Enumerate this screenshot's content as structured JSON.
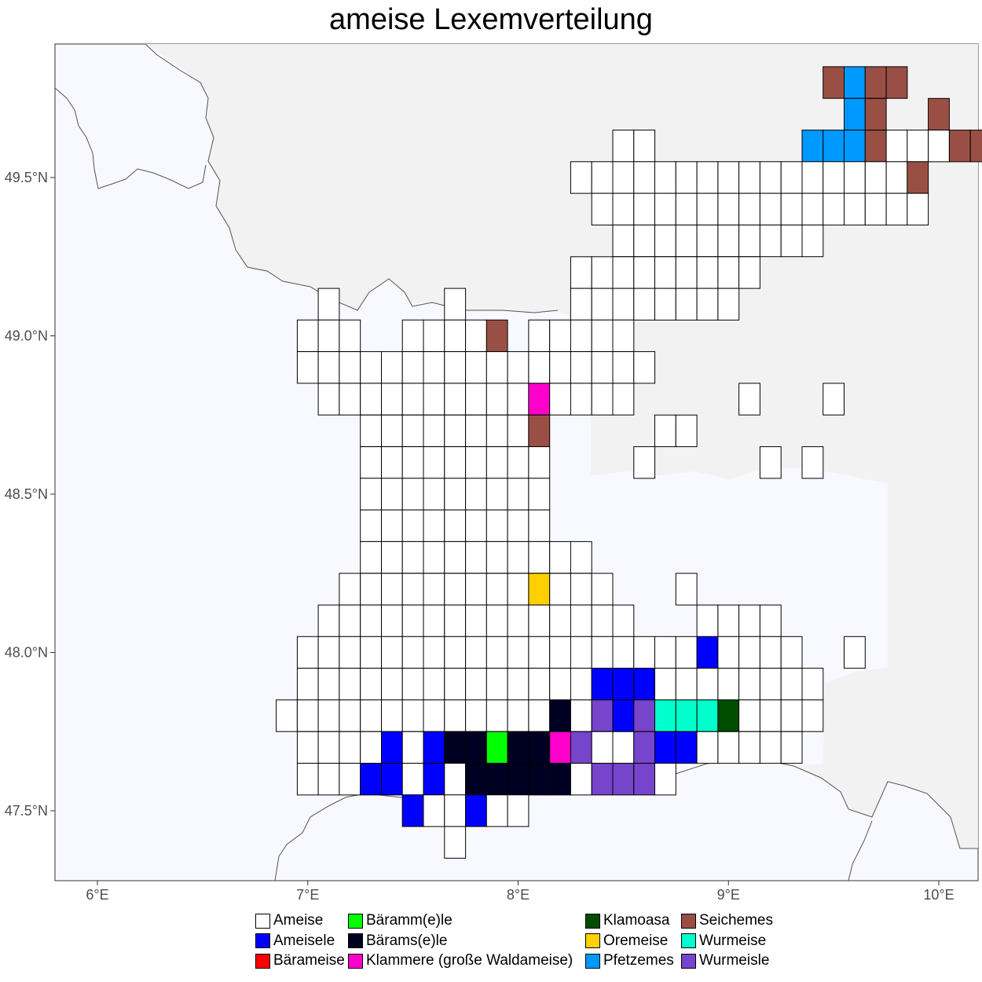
{
  "title": "ameise Lexemverteilung",
  "colors": {
    "panel": "#f8f8ff",
    "land": "#f2f2f2",
    "border_line": "#606060",
    "cell_outline": "#000000"
  },
  "chart_data": {
    "type": "grid-map",
    "title": "ameise Lexemverteilung",
    "x_ticks": [
      "6°E",
      "7°E",
      "8°E",
      "9°E",
      "10°E"
    ],
    "y_ticks": [
      "49.5°N",
      "49.0°N",
      "48.5°N",
      "48.0°N",
      "47.5°N"
    ],
    "x_range": [
      5.8,
      10.2
    ],
    "y_range": [
      47.25,
      49.9
    ],
    "cell_size": {
      "lon": 0.1,
      "lat": 0.1
    },
    "legend": [
      {
        "code": "A",
        "label": "Ameise",
        "color": "#ffffff"
      },
      {
        "code": "B",
        "label": "Ameisele",
        "color": "#0000ff"
      },
      {
        "code": "R",
        "label": "Bärameise",
        "color": "#ff0000"
      },
      {
        "code": "G",
        "label": "Bäramm(e)le",
        "color": "#00ff00"
      },
      {
        "code": "K",
        "label": "Bärams(e)le",
        "color": "#000022"
      },
      {
        "code": "M",
        "label": "Klammere (große Waldameise)",
        "color": "#ff00cc"
      },
      {
        "code": "D",
        "label": "Klamoasa",
        "color": "#004d00"
      },
      {
        "code": "Y",
        "label": "Oremeise",
        "color": "#ffd000"
      },
      {
        "code": "C",
        "label": "Pfetzemes",
        "color": "#0099ff"
      },
      {
        "code": "S",
        "label": "Seichemes",
        "color": "#9a4f45"
      },
      {
        "code": "T",
        "label": "Wurmeise",
        "color": "#00ffcc"
      },
      {
        "code": "P",
        "label": "Wurmeisle",
        "color": "#7744cc"
      }
    ],
    "grid_origin": {
      "lon": 6.85,
      "lat": 49.85
    },
    "grid_rows": [
      "..........................SCSS..",
      "...........................CS..S.",
      "................AA.......CCCSAAASS",
      "..............AAAAAAAAAAAAAAAAS",
      "...............AAAAAAAAAAAAAAAA",
      "................AAAAAAAAAA",
      "..............AAAAAAAAA",
      "..A.....A.....AAAAAAAA",
      ".AAA..AAAAS.AAAAA",
      ".AAAAAAAAAAAAAAAAA",
      "..AAAAAAAAAAMAAAA.....A...A",
      "....AAAAAAAAS.....AA",
      "....AAAAAAAAA....A.....A.A",
      "....AAAAAAAAA",
      "....AAAAAAAAA",
      "....AAAAAAAAAAA",
      "...AAAAAAAAAYAAA...A",
      "..AAAAAAAAAAAAAAA...AAAA",
      ".AAAAAAAAAAAAAAAAAAABAAAA..A",
      ".AAAAAAAAAAAAAABBBAAAAAAAA",
      "AAAAAAAAAAAAAKAPBPTTTDAAAA",
      ".AAAABABKKGKKMPAAPBBAAAAA",
      ".AAABBABAKKKKKAPPPA",
      "...BAABAA",
      "....A"
    ],
    "grid_offsets": [
      0,
      0,
      0,
      0,
      0,
      0,
      0,
      0,
      0,
      0,
      0,
      0,
      0,
      0,
      0,
      0,
      0,
      0,
      0,
      0,
      0,
      0,
      0,
      3,
      4
    ]
  }
}
